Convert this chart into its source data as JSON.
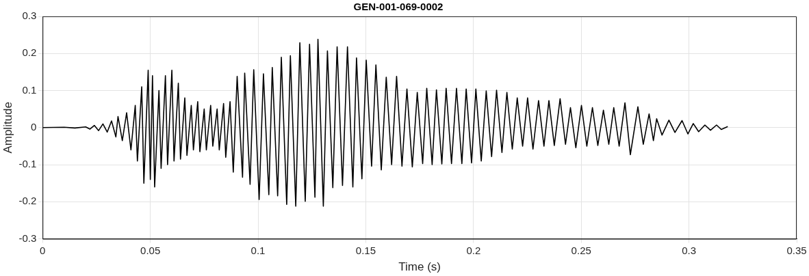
{
  "chart_data": {
    "type": "line",
    "title": "GEN-001-069-0002",
    "xlabel": "Time (s)",
    "ylabel": "Amplitude",
    "x": [
      0,
      0.01,
      0.015,
      0.02,
      0.022,
      0.024,
      0.026,
      0.028,
      0.03,
      0.032,
      0.034,
      0.035,
      0.037,
      0.039,
      0.041,
      0.043,
      0.044,
      0.046,
      0.047,
      0.049,
      0.05,
      0.051,
      0.052,
      0.054,
      0.055,
      0.057,
      0.058,
      0.06,
      0.061,
      0.063,
      0.064,
      0.066,
      0.067,
      0.069,
      0.07,
      0.072,
      0.073,
      0.075,
      0.076,
      0.078,
      0.079,
      0.081,
      0.082,
      0.084,
      0.085,
      0.087,
      0.0885,
      0.0903,
      0.0928,
      0.0938,
      0.0963,
      0.098,
      0.1005,
      0.1025,
      0.105,
      0.1066,
      0.1091,
      0.1108,
      0.1133,
      0.115,
      0.1175,
      0.1194,
      0.1219,
      0.1239,
      0.1264,
      0.1278,
      0.1303,
      0.1322,
      0.1347,
      0.1367,
      0.1392,
      0.1415,
      0.144,
      0.1457,
      0.1482,
      0.1502,
      0.1527,
      0.1547,
      0.1572,
      0.1595,
      0.162,
      0.1643,
      0.1668,
      0.1691,
      0.1716,
      0.1739,
      0.1764,
      0.1783,
      0.1808,
      0.1828,
      0.1853,
      0.1873,
      0.1898,
      0.1921,
      0.1946,
      0.1966,
      0.1991,
      0.2011,
      0.2036,
      0.2059,
      0.2084,
      0.2107,
      0.2132,
      0.2155,
      0.218,
      0.2203,
      0.2228,
      0.2251,
      0.2276,
      0.2302,
      0.2327,
      0.235,
      0.2375,
      0.2402,
      0.2427,
      0.245,
      0.2475,
      0.2501,
      0.2526,
      0.2552,
      0.2577,
      0.2603,
      0.2628,
      0.2651,
      0.2676,
      0.2703,
      0.2728,
      0.2763,
      0.2788,
      0.2815,
      0.2835,
      0.285,
      0.2875,
      0.2907,
      0.2935,
      0.2968,
      0.2995,
      0.302,
      0.3045,
      0.3074,
      0.31,
      0.3128,
      0.315,
      0.318
    ],
    "values": [
      0,
      0.001,
      -0.001,
      0.002,
      -0.004,
      0.006,
      -0.008,
      0.01,
      -0.012,
      0.018,
      -0.025,
      0.03,
      -0.035,
      0.04,
      -0.06,
      0.06,
      -0.09,
      0.11,
      -0.15,
      0.155,
      -0.14,
      0.14,
      -0.16,
      0.1,
      -0.11,
      0.14,
      -0.1,
      0.155,
      -0.09,
      0.12,
      -0.085,
      0.08,
      -0.075,
      0.06,
      -0.06,
      0.07,
      -0.065,
      0.05,
      -0.06,
      0.06,
      -0.05,
      0.05,
      -0.06,
      0.065,
      -0.08,
      0.07,
      -0.12,
      0.138,
      -0.134,
      0.147,
      -0.153,
      0.156,
      -0.194,
      0.145,
      -0.181,
      0.162,
      -0.184,
      0.19,
      -0.207,
      0.194,
      -0.212,
      0.229,
      -0.199,
      0.225,
      -0.188,
      0.238,
      -0.212,
      0.207,
      -0.162,
      0.218,
      -0.156,
      0.218,
      -0.16,
      0.188,
      -0.138,
      0.182,
      -0.104,
      0.169,
      -0.114,
      0.136,
      -0.1,
      0.138,
      -0.104,
      0.104,
      -0.106,
      0.095,
      -0.097,
      0.106,
      -0.1,
      0.102,
      -0.098,
      0.106,
      -0.097,
      0.106,
      -0.097,
      0.104,
      -0.095,
      0.104,
      -0.09,
      0.099,
      -0.078,
      0.101,
      -0.067,
      0.095,
      -0.058,
      0.08,
      -0.05,
      0.08,
      -0.058,
      0.073,
      -0.05,
      0.073,
      -0.048,
      0.078,
      -0.045,
      0.054,
      -0.054,
      0.06,
      -0.05,
      0.054,
      -0.048,
      0.047,
      -0.045,
      0.054,
      -0.05,
      0.067,
      -0.073,
      0.056,
      -0.045,
      0.037,
      -0.035,
      0.024,
      -0.02,
      0.02,
      -0.013,
      0.019,
      -0.017,
      0.011,
      -0.011,
      0.007,
      -0.007,
      0.007,
      -0.005,
      0.003
    ],
    "color": "#000000",
    "xlim": [
      0,
      0.35
    ],
    "xticks": [
      0,
      0.05,
      0.1,
      0.15,
      0.2,
      0.25,
      0.3,
      0.35
    ],
    "ylim": [
      -0.3,
      0.3
    ],
    "yticks": [
      -0.3,
      -0.2,
      -0.1,
      0,
      0.1,
      0.2,
      0.3
    ],
    "grid": true,
    "marker": "none",
    "line_style": "solid"
  }
}
